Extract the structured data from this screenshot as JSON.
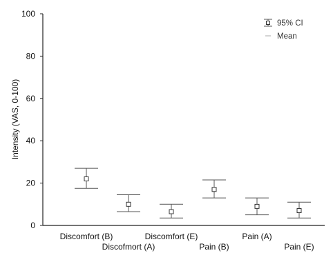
{
  "chart_data": {
    "type": "scatter",
    "categories": [
      "Discomfort (B)",
      "Discofmort (A)",
      "Discomfort (E)",
      "Pain (B)",
      "Pain (A)",
      "Pain (E)"
    ],
    "series": [
      {
        "name": "Mean",
        "values": [
          22,
          10,
          6.5,
          17,
          9,
          7
        ]
      },
      {
        "name": "95% CI",
        "low": [
          17.5,
          6.5,
          3.5,
          13,
          5,
          3.5
        ],
        "high": [
          27,
          14.5,
          10,
          21.5,
          13,
          11
        ]
      }
    ],
    "ylabel": "Intensity (VAS, 0-100)",
    "ylim": [
      0,
      100
    ],
    "yticks": [
      0,
      20,
      40,
      60,
      80,
      100
    ],
    "legend": {
      "position": "top-right",
      "ci_label": "95% CI",
      "mean_label": "Mean"
    },
    "grid": false
  }
}
